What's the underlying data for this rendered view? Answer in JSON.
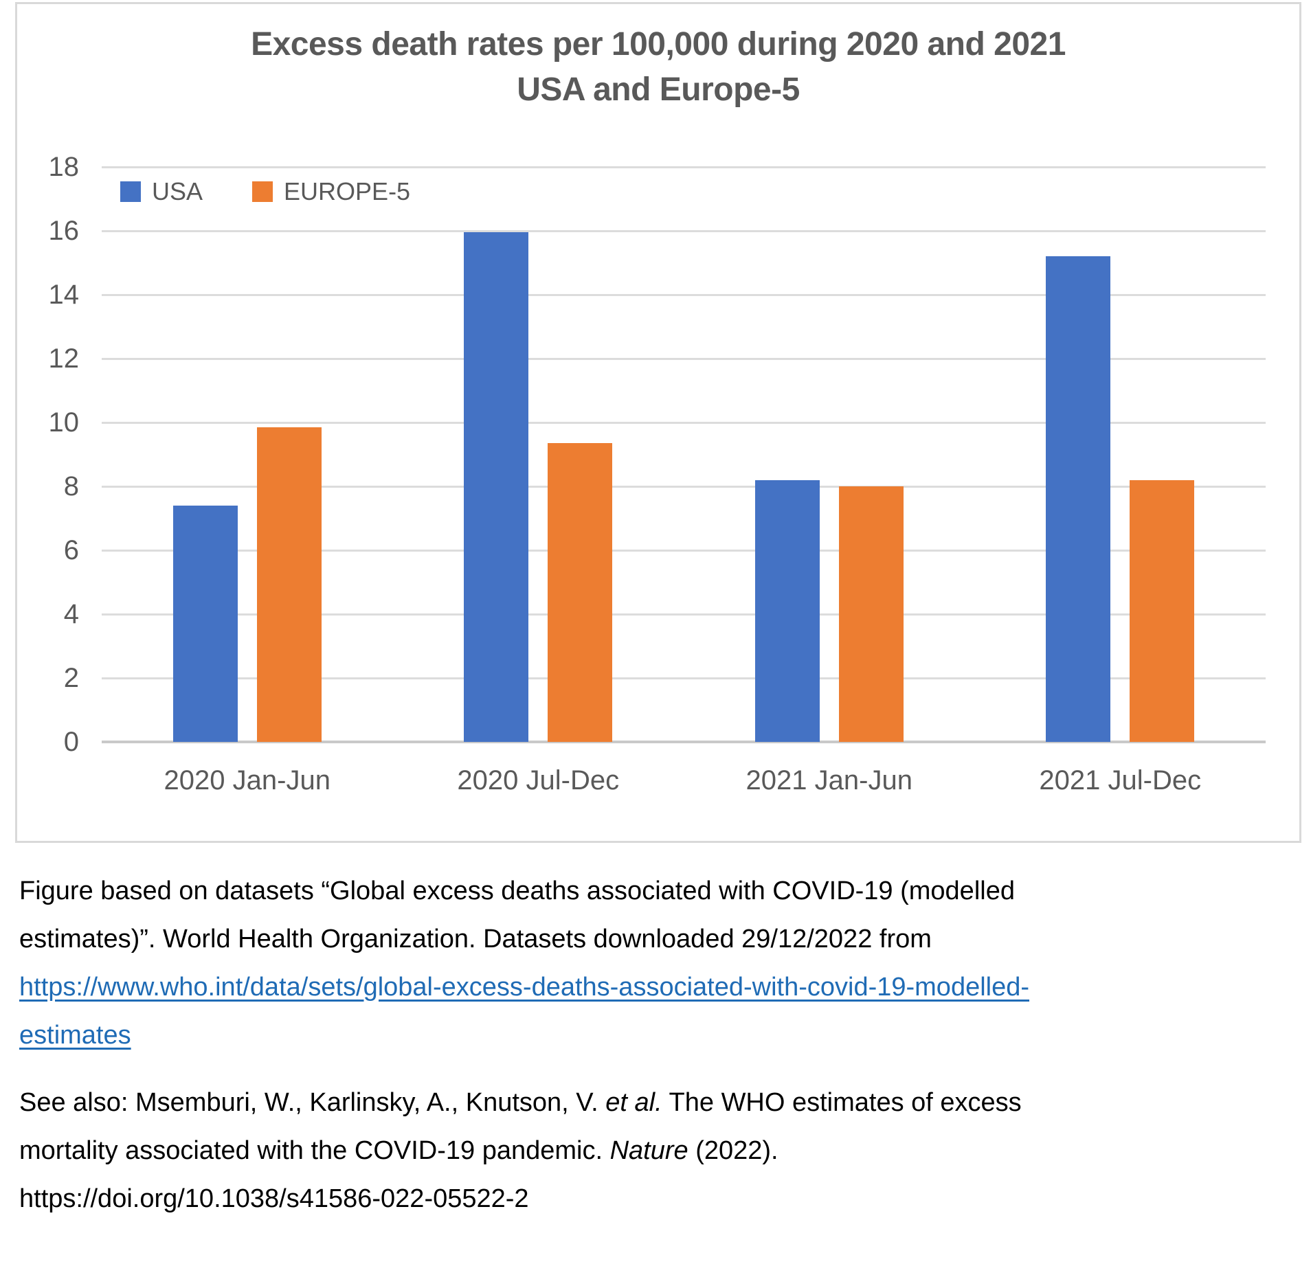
{
  "chart_data": {
    "type": "bar",
    "title": "Excess death rates per 100,000 during 2020 and 2021 USA and Europe-5",
    "title_line1": "Excess death rates per 100,000 during 2020 and 2021",
    "title_line2": "USA and Europe-5",
    "categories": [
      "2020 Jan-Jun",
      "2020 Jul-Dec",
      "2021 Jan-Jun",
      "2021 Jul-Dec"
    ],
    "series": [
      {
        "name": "USA",
        "color": "#4472C4",
        "values": [
          7.4,
          15.95,
          8.2,
          15.2
        ]
      },
      {
        "name": "EUROPE-5",
        "color": "#ED7D31",
        "values": [
          9.85,
          9.35,
          8.0,
          8.2
        ]
      }
    ],
    "xlabel": "",
    "ylabel": "",
    "ylim": [
      0,
      18
    ],
    "yticks": [
      18,
      16,
      14,
      12,
      10,
      8,
      6,
      4,
      2,
      0
    ],
    "grid": true,
    "legend_position": "top-left",
    "gridline_color": "#DCDCDC",
    "axis_text_color": "#595959"
  },
  "legend": {
    "items": [
      {
        "label": "USA",
        "color": "#4472C4"
      },
      {
        "label": "EUROPE-5",
        "color": "#ED7D31"
      }
    ]
  },
  "caption": {
    "p1_line1": "Figure based on datasets “Global excess deaths associated with COVID-19 (modelled",
    "p1_line2": "estimates)”. World Health Organization. Datasets downloaded 29/12/2022 from",
    "link_line1": "https://www.who.int/data/sets/global-excess-deaths-associated-with-covid-19-modelled-",
    "link_line2": "estimates",
    "p2_line1_pre": "See also: Msemburi, W., Karlinsky, A., Knutson, V. ",
    "p2_line1_italic": "et al.",
    "p2_line1_post": " The WHO estimates of excess",
    "p2_line2_pre": "mortality associated with the COVID-19 pandemic. ",
    "p2_line2_italic": "Nature",
    "p2_line2_post": " (2022).",
    "p2_line3": "https://doi.org/10.1038/s41586-022-05522-2"
  }
}
